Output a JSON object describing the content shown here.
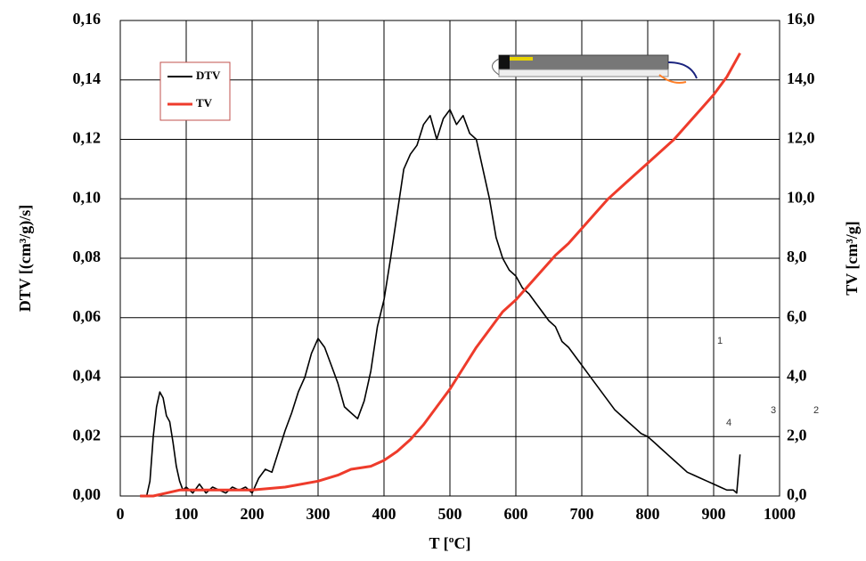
{
  "chart_data": {
    "type": "line",
    "x_label": "T  [ºC]",
    "y_label": "DTV  [(cm³/g)/s]",
    "y2_label": "TV  [cm³/g]",
    "xlim": [
      0,
      1000
    ],
    "xticks": [
      0,
      100,
      200,
      300,
      400,
      500,
      600,
      700,
      800,
      900,
      1000
    ],
    "ylim": [
      0,
      0.16
    ],
    "yticks": [
      {
        "value": 0,
        "label": "0,00"
      },
      {
        "value": 0.02,
        "label": "0,02"
      },
      {
        "value": 0.04,
        "label": "0,04"
      },
      {
        "value": 0.06,
        "label": "0,06"
      },
      {
        "value": 0.08,
        "label": "0,08"
      },
      {
        "value": 0.1,
        "label": "0,10"
      },
      {
        "value": 0.12,
        "label": "0,12"
      },
      {
        "value": 0.14,
        "label": "0,14"
      },
      {
        "value": 0.16,
        "label": "0,16"
      }
    ],
    "y2lim": [
      0,
      16
    ],
    "y2ticks": [
      {
        "value": 0,
        "label": "0,0"
      },
      {
        "value": 2,
        "label": "2,0"
      },
      {
        "value": 4,
        "label": "4,0"
      },
      {
        "value": 6,
        "label": "6,0"
      },
      {
        "value": 8,
        "label": "8,0"
      },
      {
        "value": 10,
        "label": "10,0"
      },
      {
        "value": 12,
        "label": "12,0"
      },
      {
        "value": 14,
        "label": "14,0"
      },
      {
        "value": 16,
        "label": "16,0"
      }
    ],
    "grid": true,
    "legend": "upper left",
    "annotations": [
      "1",
      "2",
      "3",
      "4"
    ],
    "series": [
      {
        "name": "DTV",
        "color": "#000000",
        "x": [
          30,
          40,
          45,
          50,
          55,
          60,
          65,
          70,
          75,
          80,
          85,
          90,
          95,
          100,
          110,
          120,
          130,
          140,
          150,
          160,
          170,
          180,
          190,
          200,
          210,
          220,
          230,
          240,
          250,
          260,
          270,
          280,
          290,
          300,
          310,
          320,
          330,
          340,
          350,
          360,
          370,
          380,
          390,
          400,
          410,
          420,
          430,
          440,
          450,
          460,
          470,
          480,
          490,
          500,
          510,
          520,
          530,
          540,
          550,
          560,
          570,
          580,
          590,
          600,
          610,
          620,
          630,
          640,
          650,
          660,
          670,
          680,
          690,
          700,
          710,
          720,
          730,
          740,
          750,
          760,
          770,
          780,
          790,
          800,
          810,
          820,
          830,
          840,
          850,
          860,
          870,
          880,
          890,
          900,
          910,
          920,
          930,
          935,
          940
        ],
        "values": [
          0,
          0,
          0.005,
          0.02,
          0.03,
          0.035,
          0.033,
          0.027,
          0.025,
          0.018,
          0.01,
          0.005,
          0.002,
          0.003,
          0.001,
          0.004,
          0.001,
          0.003,
          0.002,
          0.001,
          0.003,
          0.002,
          0.003,
          0.001,
          0.006,
          0.009,
          0.008,
          0.015,
          0.022,
          0.028,
          0.035,
          0.04,
          0.048,
          0.053,
          0.05,
          0.044,
          0.038,
          0.03,
          0.028,
          0.026,
          0.032,
          0.042,
          0.057,
          0.066,
          0.08,
          0.095,
          0.11,
          0.115,
          0.118,
          0.125,
          0.128,
          0.12,
          0.127,
          0.13,
          0.125,
          0.128,
          0.122,
          0.12,
          0.11,
          0.1,
          0.087,
          0.08,
          0.076,
          0.074,
          0.07,
          0.068,
          0.065,
          0.062,
          0.059,
          0.057,
          0.052,
          0.05,
          0.047,
          0.044,
          0.041,
          0.038,
          0.035,
          0.032,
          0.029,
          0.027,
          0.025,
          0.023,
          0.021,
          0.02,
          0.018,
          0.016,
          0.014,
          0.012,
          0.01,
          0.008,
          0.007,
          0.006,
          0.005,
          0.004,
          0.003,
          0.002,
          0.002,
          0.001,
          0.014
        ]
      },
      {
        "name": "TV",
        "color": "#ee3b2b",
        "axis": "y2",
        "x": [
          30,
          50,
          70,
          90,
          100,
          150,
          200,
          250,
          300,
          330,
          350,
          380,
          400,
          420,
          440,
          460,
          480,
          500,
          520,
          540,
          560,
          580,
          600,
          620,
          640,
          660,
          680,
          700,
          720,
          740,
          760,
          780,
          800,
          820,
          840,
          860,
          880,
          900,
          920,
          940
        ],
        "values": [
          0,
          0,
          0.1,
          0.2,
          0.2,
          0.2,
          0.2,
          0.3,
          0.5,
          0.7,
          0.9,
          1.0,
          1.2,
          1.5,
          1.9,
          2.4,
          3.0,
          3.6,
          4.3,
          5.0,
          5.6,
          6.2,
          6.6,
          7.1,
          7.6,
          8.1,
          8.5,
          9.0,
          9.5,
          10.0,
          10.4,
          10.8,
          11.2,
          11.6,
          12.0,
          12.5,
          13.0,
          13.5,
          14.1,
          14.9
        ]
      }
    ]
  }
}
